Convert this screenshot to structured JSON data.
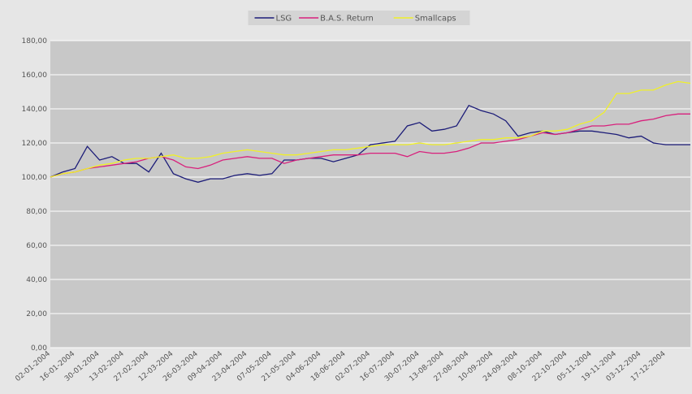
{
  "chart_data": {
    "type": "line",
    "categories": [
      "02-01-2004",
      null,
      "16-01-2004",
      null,
      "30-01-2004",
      null,
      "13-02-2004",
      null,
      "27-02-2004",
      null,
      "12-03-2004",
      null,
      "26-03-2004",
      null,
      "09-04-2004",
      null,
      "23-04-2004",
      null,
      "07-05-2004",
      null,
      "21-05-2004",
      null,
      "04-06-2004",
      null,
      "18-06-2004",
      null,
      "02-07-2004",
      null,
      "16-07-2004",
      null,
      "30-07-2004",
      null,
      "13-08-2004",
      null,
      "27-08-2004",
      null,
      "10-09-2004",
      null,
      "24-09-2004",
      null,
      "08-10-2004",
      null,
      "22-10-2004",
      null,
      "05-11-2004",
      null,
      "19-11-2004",
      null,
      "03-12-2004",
      null,
      "17-12-2004",
      null,
      null
    ],
    "series": [
      {
        "name": "LSG",
        "color": "#1c1c78",
        "values": [
          100,
          103,
          105,
          118,
          110,
          112,
          108,
          108,
          103,
          114,
          102,
          99,
          97,
          99,
          99,
          101,
          102,
          101,
          102,
          110,
          110,
          111,
          111,
          109,
          111,
          113,
          119,
          120,
          121,
          130,
          132,
          127,
          128,
          130,
          142,
          139,
          137,
          133,
          124,
          126,
          127,
          125,
          126,
          127,
          127,
          126,
          125,
          123,
          124,
          120,
          119,
          119,
          119
        ]
      },
      {
        "name": "B.A.S. Return",
        "color": "#d8207c",
        "values": [
          100,
          102,
          103,
          105,
          106,
          107,
          108,
          109,
          111,
          112,
          110,
          106,
          105,
          107,
          110,
          111,
          112,
          111,
          111,
          108,
          110,
          111,
          112,
          113,
          113,
          113,
          114,
          114,
          114,
          112,
          115,
          114,
          114,
          115,
          117,
          120,
          120,
          121,
          122,
          124,
          126,
          125,
          126,
          128,
          130,
          130,
          131,
          131,
          133,
          134,
          136,
          137,
          137
        ]
      },
      {
        "name": "Smallcaps",
        "color": "#f0f028",
        "values": [
          100,
          102,
          103,
          105,
          107,
          108,
          110,
          111,
          111,
          112,
          113,
          111,
          111,
          112,
          114,
          115,
          116,
          115,
          114,
          113,
          113,
          114,
          115,
          116,
          116,
          117,
          118,
          119,
          119,
          119,
          120,
          119,
          119,
          120,
          121,
          122,
          122,
          123,
          123,
          124,
          127,
          127,
          128,
          131,
          133,
          138,
          149,
          149,
          151,
          151,
          154,
          156,
          155
        ]
      }
    ],
    "ylim": [
      0,
      180
    ],
    "yticks": [
      {
        "value": 0,
        "label": "0,00"
      },
      {
        "value": 20,
        "label": "20,00"
      },
      {
        "value": 40,
        "label": "40,00"
      },
      {
        "value": 60,
        "label": "60,00"
      },
      {
        "value": 80,
        "label": "80,00"
      },
      {
        "value": 100,
        "label": "100,00"
      },
      {
        "value": 120,
        "label": "120,00"
      },
      {
        "value": 140,
        "label": "140,00"
      },
      {
        "value": 160,
        "label": "160,00"
      },
      {
        "value": 180,
        "label": "180,00"
      }
    ],
    "grid": true,
    "legend": "top"
  }
}
